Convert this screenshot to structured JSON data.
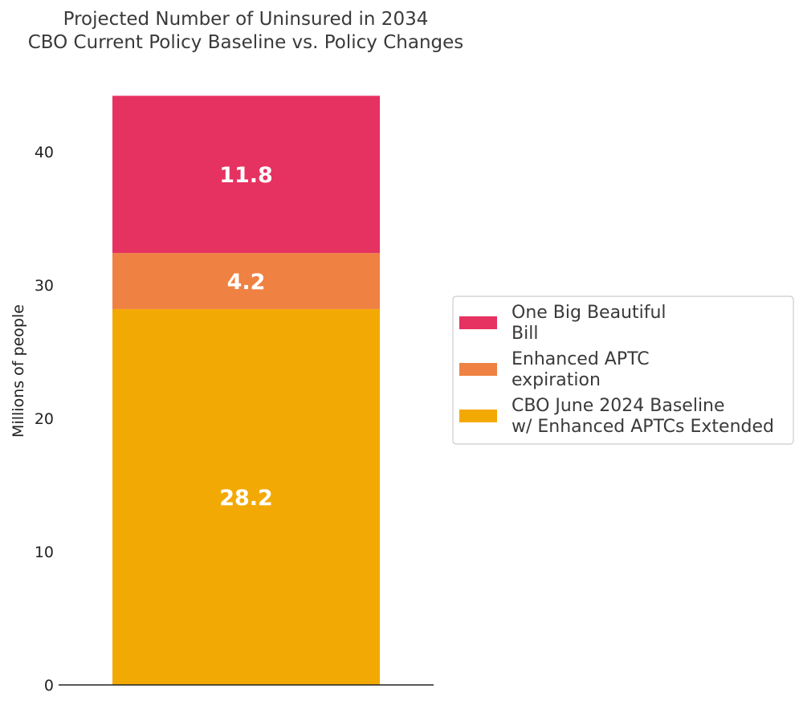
{
  "chart_data": {
    "type": "bar",
    "stacked": true,
    "title": [
      "Projected Number of Uninsured in 2034",
      "CBO Current Policy Baseline vs. Policy Changes"
    ],
    "ylabel": "Millions of people",
    "xlabel": "",
    "ylim": [
      0,
      44.2
    ],
    "yticks": [
      "0",
      "10",
      "20",
      "30",
      "40"
    ],
    "grid": false,
    "legend_position": "right",
    "series": [
      {
        "name": "CBO June 2024 Baseline\nw/ Enhanced APTCs Extended",
        "value": 28.2,
        "label": "28.2",
        "color": "#f3a904"
      },
      {
        "name": "Enhanced APTC\nexpiration",
        "value": 4.2,
        "label": "4.2",
        "color": "#ef8142"
      },
      {
        "name": "One Big Beautiful\nBill",
        "value": 11.8,
        "label": "11.8",
        "color": "#e63260"
      }
    ],
    "legend_order": [
      2,
      1,
      0
    ]
  }
}
